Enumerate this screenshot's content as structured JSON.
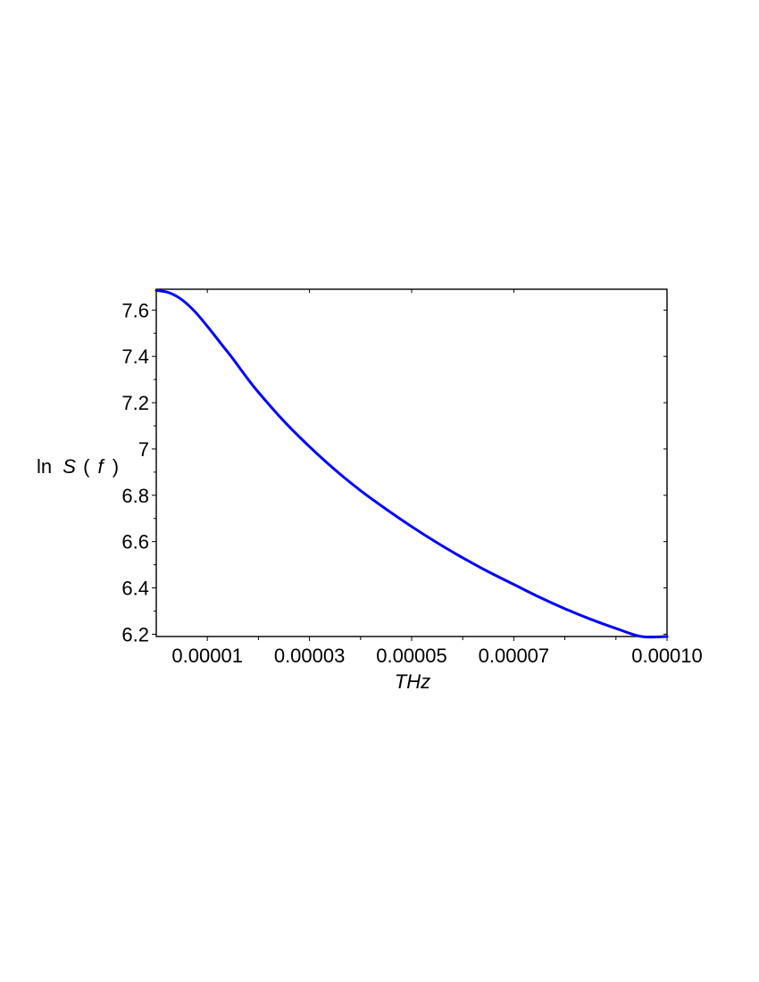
{
  "chart_data": {
    "type": "line",
    "title": "",
    "xlabel": "THz",
    "ylabel": {
      "fn": "ln",
      "var": "S",
      "open": "(",
      "arg": "f",
      "close": ")"
    },
    "xlim": [
      0.0,
      0.0001
    ],
    "ylim": [
      6.2,
      7.7
    ],
    "x_ticks": [
      {
        "value": 1e-05,
        "label": "0.00001"
      },
      {
        "value": 3e-05,
        "label": "0.00003"
      },
      {
        "value": 5e-05,
        "label": "0.00005"
      },
      {
        "value": 7e-05,
        "label": "0.00007"
      },
      {
        "value": 0.0001,
        "label": "0.00010"
      }
    ],
    "x_minor_ticks": [
      2e-05,
      4e-05,
      6e-05,
      8e-05,
      9e-05
    ],
    "y_ticks": [
      {
        "value": 6.2,
        "label": "6.2"
      },
      {
        "value": 6.4,
        "label": "6.4"
      },
      {
        "value": 6.6,
        "label": "6.6"
      },
      {
        "value": 6.8,
        "label": "6.8"
      },
      {
        "value": 7.0,
        "label": "7"
      },
      {
        "value": 7.2,
        "label": "7.2"
      },
      {
        "value": 7.4,
        "label": "7.4"
      },
      {
        "value": 7.6,
        "label": "7.6"
      }
    ],
    "grid": false,
    "legend": "none",
    "series": [
      {
        "color": "#0000ff",
        "x": [
          0.0,
          2.5e-06,
          5e-06,
          7.5e-06,
          1e-05,
          1.25e-05,
          1.5e-05,
          1.75e-05,
          2e-05,
          2.5e-05,
          3e-05,
          3.5e-05,
          4e-05,
          4.5e-05,
          5e-05,
          5.5e-05,
          6e-05,
          6.5e-05,
          7e-05,
          7.5e-05,
          8e-05,
          8.5e-05,
          9e-05,
          9.5e-05,
          0.0001
        ],
        "y": [
          7.685,
          7.675,
          7.645,
          7.595,
          7.53,
          7.46,
          7.39,
          7.315,
          7.245,
          7.12,
          7.01,
          6.91,
          6.82,
          6.74,
          6.665,
          6.595,
          6.53,
          6.47,
          6.415,
          6.36,
          6.31,
          6.265,
          6.225,
          6.19,
          6.19
        ]
      }
    ]
  }
}
